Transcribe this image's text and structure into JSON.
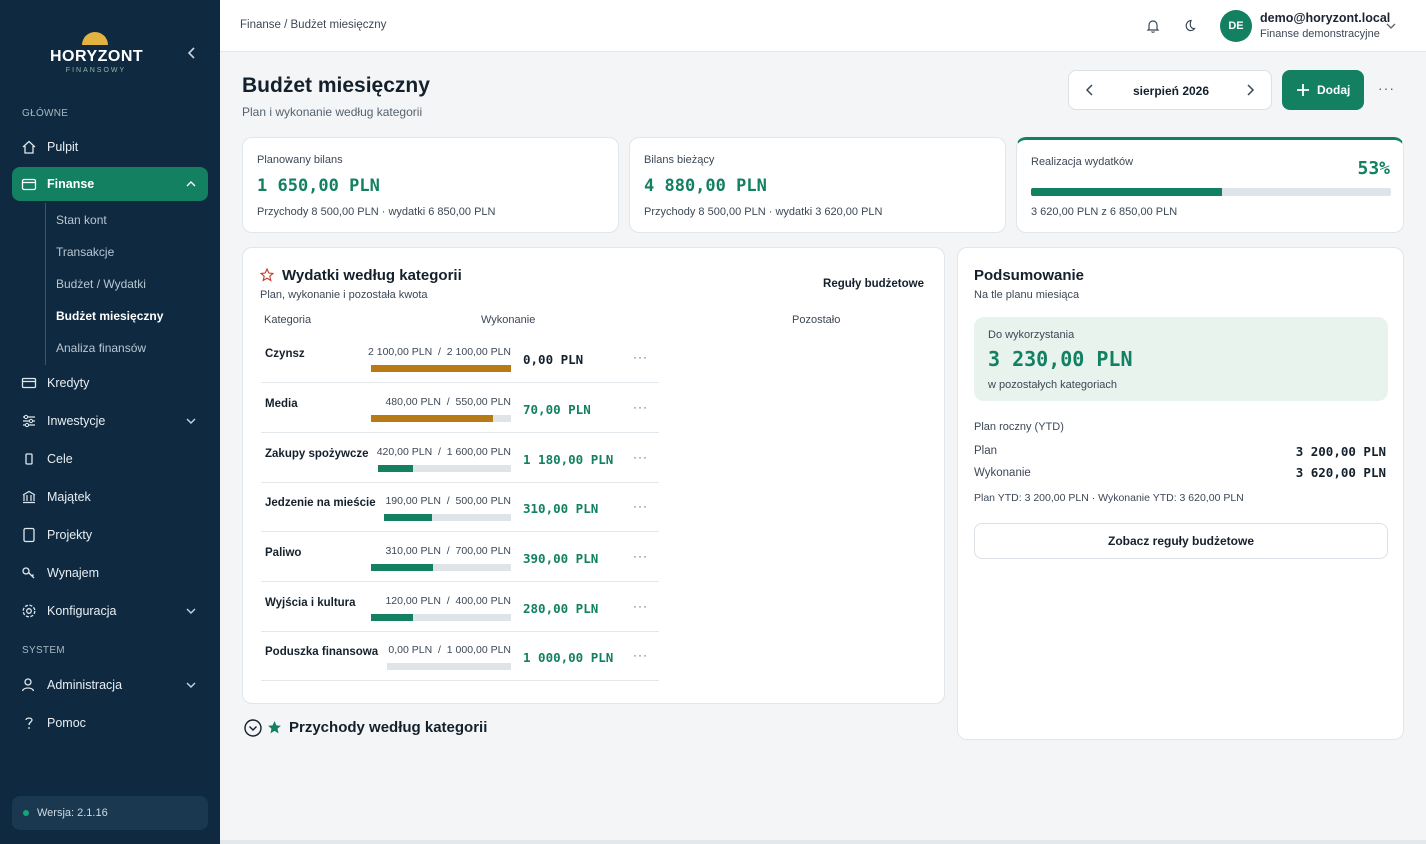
{
  "colors": {
    "accent": "#128061",
    "sidebar": "#0f2a40",
    "warn": "#b87a14",
    "track": "#dfe4e9"
  },
  "sidebar": {
    "logo": {
      "brand": "HORYZONT",
      "sub": "FINANSOWY"
    },
    "section_main": "GŁÓWNE",
    "section_system": "SYSTEM",
    "items": [
      {
        "label": "Pulpit",
        "icon": "home-icon"
      },
      {
        "label": "Finanse",
        "icon": "wallet-icon"
      },
      {
        "label": "Kredyty",
        "icon": "card-icon"
      },
      {
        "label": "Inwestycje",
        "icon": "sliders-icon"
      },
      {
        "label": "Cele",
        "icon": "target-icon"
      },
      {
        "label": "Majątek",
        "icon": "bank-icon"
      },
      {
        "label": "Projekty",
        "icon": "tablet-icon"
      },
      {
        "label": "Wynajem",
        "icon": "key-icon"
      },
      {
        "label": "Konfiguracja",
        "icon": "gear-icon"
      },
      {
        "label": "Administracja",
        "icon": "user-icon"
      },
      {
        "label": "Pomoc",
        "icon": "question-icon"
      }
    ],
    "sub_items": [
      "Stan kont",
      "Transakcje",
      "Budżet / Wydatki",
      "Budżet miesięczny",
      "Analiza finansów"
    ],
    "version": "Wersja: 2.1.16"
  },
  "topbar": {
    "breadcrumb": "Finanse / Budżet miesięczny",
    "avatar": "DE",
    "email": "demo@horyzont.local",
    "org": "Finanse demonstracyjne"
  },
  "header": {
    "title": "Budżet miesięczny",
    "subtitle": "Plan i wykonanie według kategorii",
    "month": "sierpień 2026",
    "add_label": "Dodaj",
    "more": "···"
  },
  "kpis": {
    "planned": {
      "title": "Planowany bilans",
      "value": "1 650,00 PLN",
      "sub": "Przychody  8 500,00 PLN  · wydatki  6 850,00 PLN"
    },
    "current": {
      "title": "Bilans bieżący",
      "value": "4 880,00 PLN",
      "sub": "Przychody  8 500,00 PLN  · wydatki  3 620,00 PLN"
    },
    "realization": {
      "title": "Realizacja wydatków",
      "pct": "53%",
      "progress": 0.53,
      "sub": "3 620,00 PLN z 6 850,00 PLN"
    }
  },
  "expenses": {
    "title": "Wydatki według kategorii",
    "subtitle": "Plan, wykonanie i pozostała kwota",
    "rules_link": "Reguły budżetowe",
    "col_category": "Kategoria",
    "col_execution": "Wykonanie",
    "col_remaining": "Pozostało",
    "rows": [
      {
        "category": "Czynsz",
        "spent": "2 100,00 PLN",
        "plan": "2 100,00 PLN",
        "progress": 1.0,
        "over_threshold": true,
        "remaining": "0,00 PLN"
      },
      {
        "category": "Media",
        "spent": "480,00 PLN",
        "plan": "550,00 PLN",
        "progress": 0.873,
        "over_threshold": true,
        "remaining": "70,00 PLN"
      },
      {
        "category": "Zakupy spożywcze",
        "spent": "420,00 PLN",
        "plan": "1 600,00 PLN",
        "progress": 0.2625,
        "over_threshold": false,
        "remaining": "1 180,00 PLN"
      },
      {
        "category": "Jedzenie na mieście",
        "spent": "190,00 PLN",
        "plan": "500,00 PLN",
        "progress": 0.38,
        "over_threshold": false,
        "remaining": "310,00 PLN"
      },
      {
        "category": "Paliwo",
        "spent": "310,00 PLN",
        "plan": "700,00 PLN",
        "progress": 0.443,
        "over_threshold": false,
        "remaining": "390,00 PLN"
      },
      {
        "category": "Wyjścia i kultura",
        "spent": "120,00 PLN",
        "plan": "400,00 PLN",
        "progress": 0.3,
        "over_threshold": false,
        "remaining": "280,00 PLN"
      },
      {
        "category": "Poduszka finansowa",
        "spent": "0,00 PLN",
        "plan": "1 000,00 PLN",
        "progress": 0.0,
        "over_threshold": false,
        "remaining": "1 000,00 PLN"
      }
    ]
  },
  "income": {
    "title": "Przychody według kategorii"
  },
  "summary": {
    "title": "Podsumowanie",
    "subtitle": "Na tle planu miesiąca",
    "available_label": "Do wykorzystania",
    "available_value": "3 230,00 PLN",
    "available_note": "w pozostałych kategoriach",
    "ytd_label": "Plan roczny (YTD)",
    "plan_label": "Plan",
    "plan_value": "3 200,00 PLN",
    "exec_label": "Wykonanie",
    "exec_value": "3 620,00 PLN",
    "note": "Plan YTD: 3 200,00 PLN · Wykonanie YTD: 3 620,00 PLN",
    "button": "Zobacz reguły budżetowe"
  }
}
